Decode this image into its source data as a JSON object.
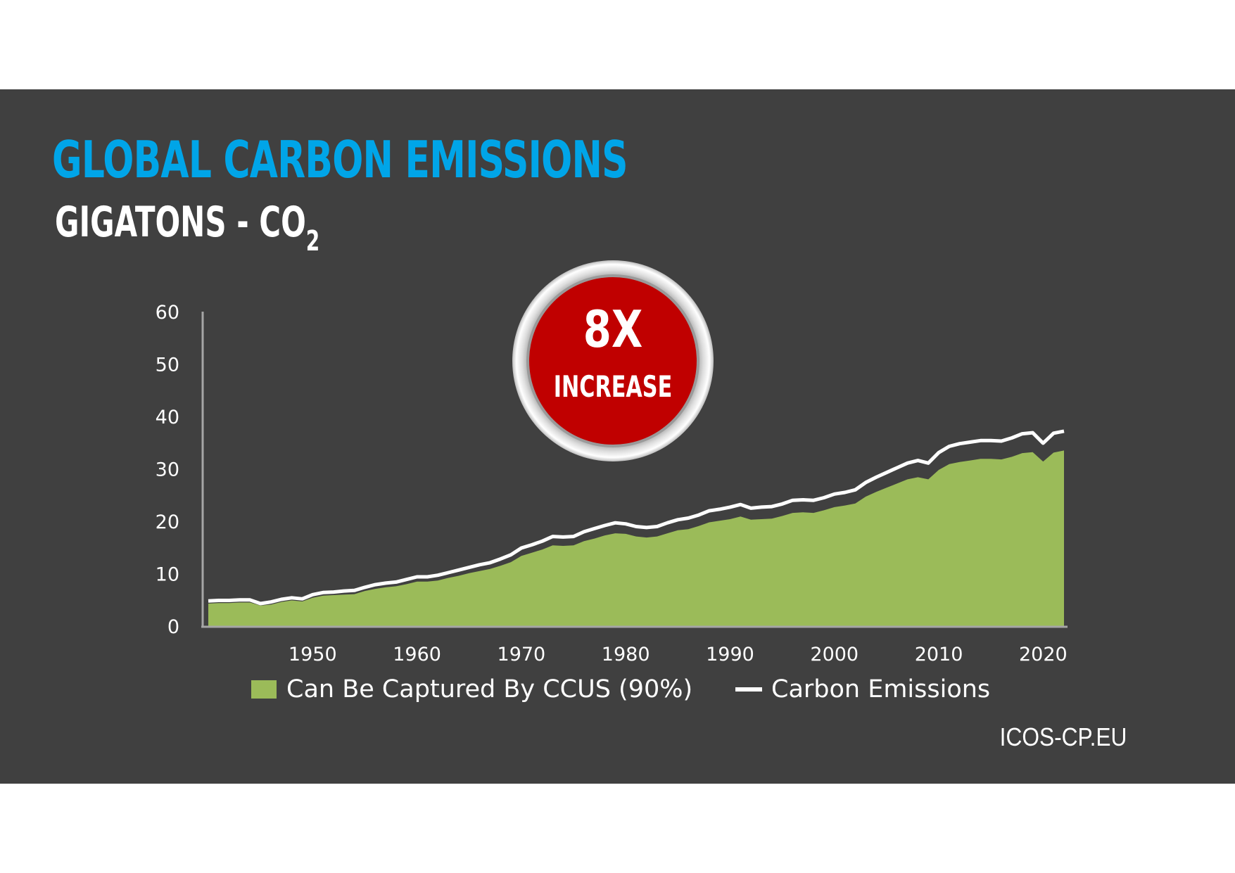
{
  "colors": {
    "background": "#404040",
    "title": "#00a5e8",
    "area": "#9bbb59",
    "line": "#ffffff",
    "badge": "#c00000"
  },
  "badge": {
    "main": "8X",
    "sub": "INCREASE"
  },
  "source": "ICOS-CP.EU",
  "chart_data": {
    "type": "area",
    "title": "GLOBAL CARBON EMISSIONS",
    "subtitle_main": "GIGATONS - CO",
    "subtitle_sub": "2",
    "ylim": [
      0,
      60
    ],
    "xlim": [
      1940,
      2022
    ],
    "y_ticks": [
      "0",
      "10",
      "20",
      "30",
      "40",
      "50",
      "60"
    ],
    "x_ticks": [
      "1950",
      "1960",
      "1970",
      "1980",
      "1990",
      "2000",
      "2010",
      "2020"
    ],
    "legend": [
      "Can Be Captured By CCUS (90%)",
      "Carbon Emissions"
    ],
    "grid": false,
    "x": [
      1940,
      1941,
      1942,
      1943,
      1944,
      1945,
      1946,
      1947,
      1948,
      1949,
      1950,
      1951,
      1952,
      1953,
      1954,
      1955,
      1956,
      1957,
      1958,
      1959,
      1960,
      1961,
      1962,
      1963,
      1964,
      1965,
      1966,
      1967,
      1968,
      1969,
      1970,
      1971,
      1972,
      1973,
      1974,
      1975,
      1976,
      1977,
      1978,
      1979,
      1980,
      1981,
      1982,
      1983,
      1984,
      1985,
      1986,
      1987,
      1988,
      1989,
      1990,
      1991,
      1992,
      1993,
      1994,
      1995,
      1996,
      1997,
      1998,
      1999,
      2000,
      2001,
      2002,
      2003,
      2004,
      2005,
      2006,
      2007,
      2008,
      2009,
      2010,
      2011,
      2012,
      2013,
      2014,
      2015,
      2016,
      2017,
      2018,
      2019,
      2020,
      2021,
      2022
    ],
    "series": [
      {
        "name": "Carbon Emissions",
        "values": [
          4.8,
          4.9,
          4.9,
          5.0,
          5.0,
          4.3,
          4.6,
          5.1,
          5.4,
          5.2,
          6.0,
          6.4,
          6.5,
          6.7,
          6.8,
          7.4,
          7.9,
          8.2,
          8.4,
          8.9,
          9.4,
          9.4,
          9.7,
          10.2,
          10.7,
          11.2,
          11.7,
          12.1,
          12.8,
          13.6,
          14.9,
          15.5,
          16.2,
          17.1,
          17.0,
          17.1,
          18.0,
          18.6,
          19.2,
          19.7,
          19.5,
          19.0,
          18.8,
          19.0,
          19.7,
          20.3,
          20.6,
          21.2,
          22.0,
          22.3,
          22.7,
          23.2,
          22.5,
          22.7,
          22.8,
          23.3,
          24.0,
          24.1,
          24.0,
          24.5,
          25.2,
          25.5,
          26.0,
          27.4,
          28.4,
          29.3,
          30.2,
          31.1,
          31.6,
          31.1,
          33.1,
          34.3,
          34.8,
          35.1,
          35.4,
          35.4,
          35.3,
          35.9,
          36.7,
          36.9,
          34.9,
          36.8,
          37.2
        ]
      },
      {
        "name": "Can Be Captured By CCUS (90%)",
        "values": [
          4.3,
          4.4,
          4.4,
          4.5,
          4.5,
          3.9,
          4.1,
          4.6,
          4.9,
          4.7,
          5.4,
          5.8,
          5.9,
          6.0,
          6.1,
          6.7,
          7.1,
          7.4,
          7.6,
          8.0,
          8.5,
          8.5,
          8.7,
          9.2,
          9.6,
          10.1,
          10.5,
          10.9,
          11.5,
          12.2,
          13.4,
          14.0,
          14.6,
          15.4,
          15.3,
          15.4,
          16.2,
          16.7,
          17.3,
          17.7,
          17.6,
          17.1,
          16.9,
          17.1,
          17.7,
          18.3,
          18.5,
          19.1,
          19.8,
          20.1,
          20.4,
          20.9,
          20.3,
          20.4,
          20.5,
          21.0,
          21.6,
          21.7,
          21.6,
          22.1,
          22.7,
          23.0,
          23.4,
          24.7,
          25.6,
          26.4,
          27.2,
          28.0,
          28.4,
          28.0,
          29.8,
          30.9,
          31.3,
          31.6,
          31.9,
          31.9,
          31.8,
          32.3,
          33.0,
          33.2,
          31.4,
          33.1,
          33.5
        ]
      }
    ]
  }
}
